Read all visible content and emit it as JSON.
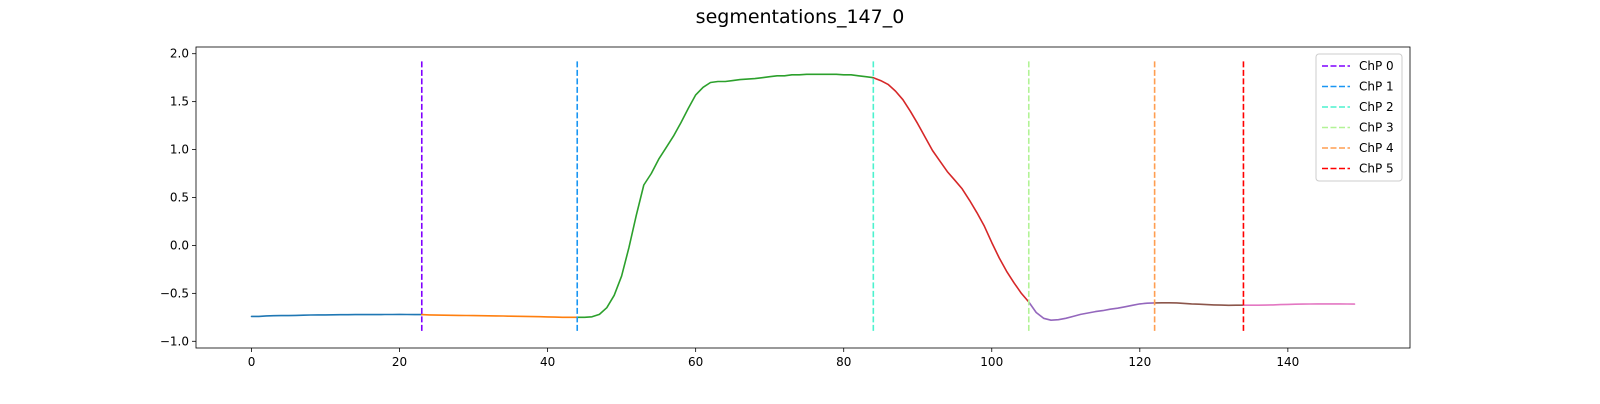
{
  "chart_data": {
    "type": "line",
    "title": "segmentations_147_0",
    "xlabel": "",
    "ylabel": "",
    "xlim": [
      -7.5,
      156.5
    ],
    "ylim": [
      -1.07,
      2.07
    ],
    "xticks": [
      0,
      20,
      40,
      60,
      80,
      100,
      120,
      140
    ],
    "yticks": [
      -1.0,
      -0.5,
      0.0,
      0.5,
      1.0,
      1.5,
      2.0
    ],
    "ytick_labels": [
      "−1.0",
      "−0.5",
      "0.0",
      "0.5",
      "1.0",
      "1.5",
      "2.0"
    ],
    "grid": false,
    "legend_position": "top-right",
    "signal_x_start": 0,
    "signal": [
      -0.74,
      -0.74,
      -0.735,
      -0.733,
      -0.732,
      -0.732,
      -0.73,
      -0.728,
      -0.726,
      -0.725,
      -0.725,
      -0.724,
      -0.723,
      -0.723,
      -0.722,
      -0.722,
      -0.722,
      -0.722,
      -0.721,
      -0.721,
      -0.72,
      -0.721,
      -0.722,
      -0.722,
      -0.725,
      -0.727,
      -0.728,
      -0.729,
      -0.73,
      -0.731,
      -0.732,
      -0.733,
      -0.734,
      -0.735,
      -0.736,
      -0.738,
      -0.739,
      -0.74,
      -0.742,
      -0.744,
      -0.746,
      -0.748,
      -0.75,
      -0.75,
      -0.75,
      -0.75,
      -0.745,
      -0.72,
      -0.65,
      -0.52,
      -0.32,
      -0.02,
      0.32,
      0.63,
      0.75,
      0.9,
      1.02,
      1.14,
      1.28,
      1.43,
      1.57,
      1.65,
      1.7,
      1.71,
      1.71,
      1.72,
      1.73,
      1.735,
      1.74,
      1.75,
      1.76,
      1.77,
      1.77,
      1.78,
      1.78,
      1.785,
      1.785,
      1.785,
      1.785,
      1.785,
      1.78,
      1.78,
      1.77,
      1.76,
      1.75,
      1.72,
      1.68,
      1.61,
      1.52,
      1.4,
      1.27,
      1.13,
      0.99,
      0.88,
      0.77,
      0.68,
      0.59,
      0.47,
      0.34,
      0.2,
      0.03,
      -0.13,
      -0.27,
      -0.39,
      -0.5,
      -0.59,
      -0.7,
      -0.76,
      -0.78,
      -0.775,
      -0.76,
      -0.74,
      -0.72,
      -0.705,
      -0.69,
      -0.68,
      -0.665,
      -0.655,
      -0.64,
      -0.625,
      -0.61,
      -0.603,
      -0.6,
      -0.598,
      -0.598,
      -0.6,
      -0.605,
      -0.61,
      -0.613,
      -0.617,
      -0.62,
      -0.622,
      -0.625,
      -0.624,
      -0.624,
      -0.624,
      -0.623,
      -0.622,
      -0.62,
      -0.617,
      -0.615,
      -0.613,
      -0.612,
      -0.611,
      -0.61,
      -0.61,
      -0.61,
      -0.61,
      -0.611,
      -0.612
    ],
    "segments": [
      {
        "start": 0,
        "end": 23,
        "color": "#1f77b4"
      },
      {
        "start": 23,
        "end": 44,
        "color": "#ff7f0e"
      },
      {
        "start": 44,
        "end": 84,
        "color": "#2ca02c"
      },
      {
        "start": 84,
        "end": 105,
        "color": "#d62728"
      },
      {
        "start": 105,
        "end": 122,
        "color": "#9467bd"
      },
      {
        "start": 122,
        "end": 134,
        "color": "#8c564b"
      },
      {
        "start": 134,
        "end": 149,
        "color": "#e377c2"
      }
    ],
    "changepoints": [
      {
        "name": "ChP 0",
        "x": 23,
        "color": "#7f00ff"
      },
      {
        "name": "ChP 1",
        "x": 44,
        "color": "#1996f3"
      },
      {
        "name": "ChP 2",
        "x": 84,
        "color": "#4cf2ce"
      },
      {
        "name": "ChP 3",
        "x": 105,
        "color": "#b2f396"
      },
      {
        "name": "ChP 4",
        "x": 122,
        "color": "#ff9e51"
      },
      {
        "name": "ChP 5",
        "x": 134,
        "color": "#ff0000"
      }
    ],
    "changepoint_y_range": [
      -0.9,
      1.92
    ]
  }
}
